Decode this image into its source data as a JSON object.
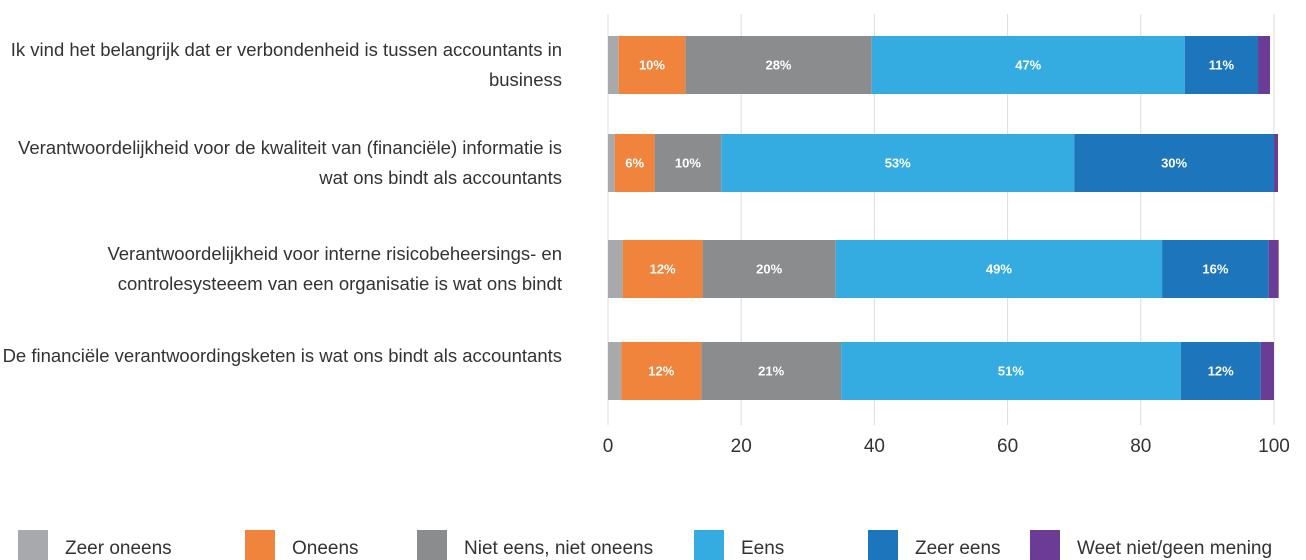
{
  "chart_data": {
    "type": "stacked_barh",
    "categories": [
      "Ik vind het belangrijk dat er verbondenheid is tussen accountants in business",
      "Verantwoordelijkheid voor de kwaliteit van (financiële) informatie is wat ons bindt als accountants",
      "Verantwoordelijkheid voor interne risicobeheersings- en controlesysteeem van een organisatie is wat ons bindt",
      "De financiële verantwoordingsketen is wat ons bindt als accountants"
    ],
    "series": [
      {
        "name": "Zeer oneens",
        "color": "#a7a9ac",
        "values": [
          1.6,
          1,
          2.2,
          2
        ]
      },
      {
        "name": "Oneens",
        "color": "#f0843c",
        "values": [
          10,
          6,
          12,
          12
        ],
        "value_labels": [
          "10%",
          "6%",
          "12%",
          "12%"
        ]
      },
      {
        "name": "Niet eens, niet oneens",
        "color": "#8a8c8e",
        "values": [
          28,
          10,
          20,
          21
        ],
        "value_labels": [
          "28%",
          "10%",
          "20%",
          "21%"
        ]
      },
      {
        "name": "Eens",
        "color": "#34ace1",
        "values": [
          47,
          53,
          49,
          51
        ],
        "value_labels": [
          "47%",
          "53%",
          "49%",
          "51%"
        ]
      },
      {
        "name": "Zeer eens",
        "color": "#1d75bb",
        "values": [
          11,
          30,
          16,
          12
        ],
        "value_labels": [
          "11%",
          "30%",
          "16%",
          "12%"
        ]
      },
      {
        "name": "Weet niet/geen mening",
        "color": "#6a3c96",
        "values": [
          1.8,
          0.6,
          1.5,
          2
        ]
      }
    ],
    "xlim": [
      0,
      100
    ],
    "xticks": [
      0,
      20,
      40,
      60,
      80,
      100
    ],
    "grid": true
  }
}
